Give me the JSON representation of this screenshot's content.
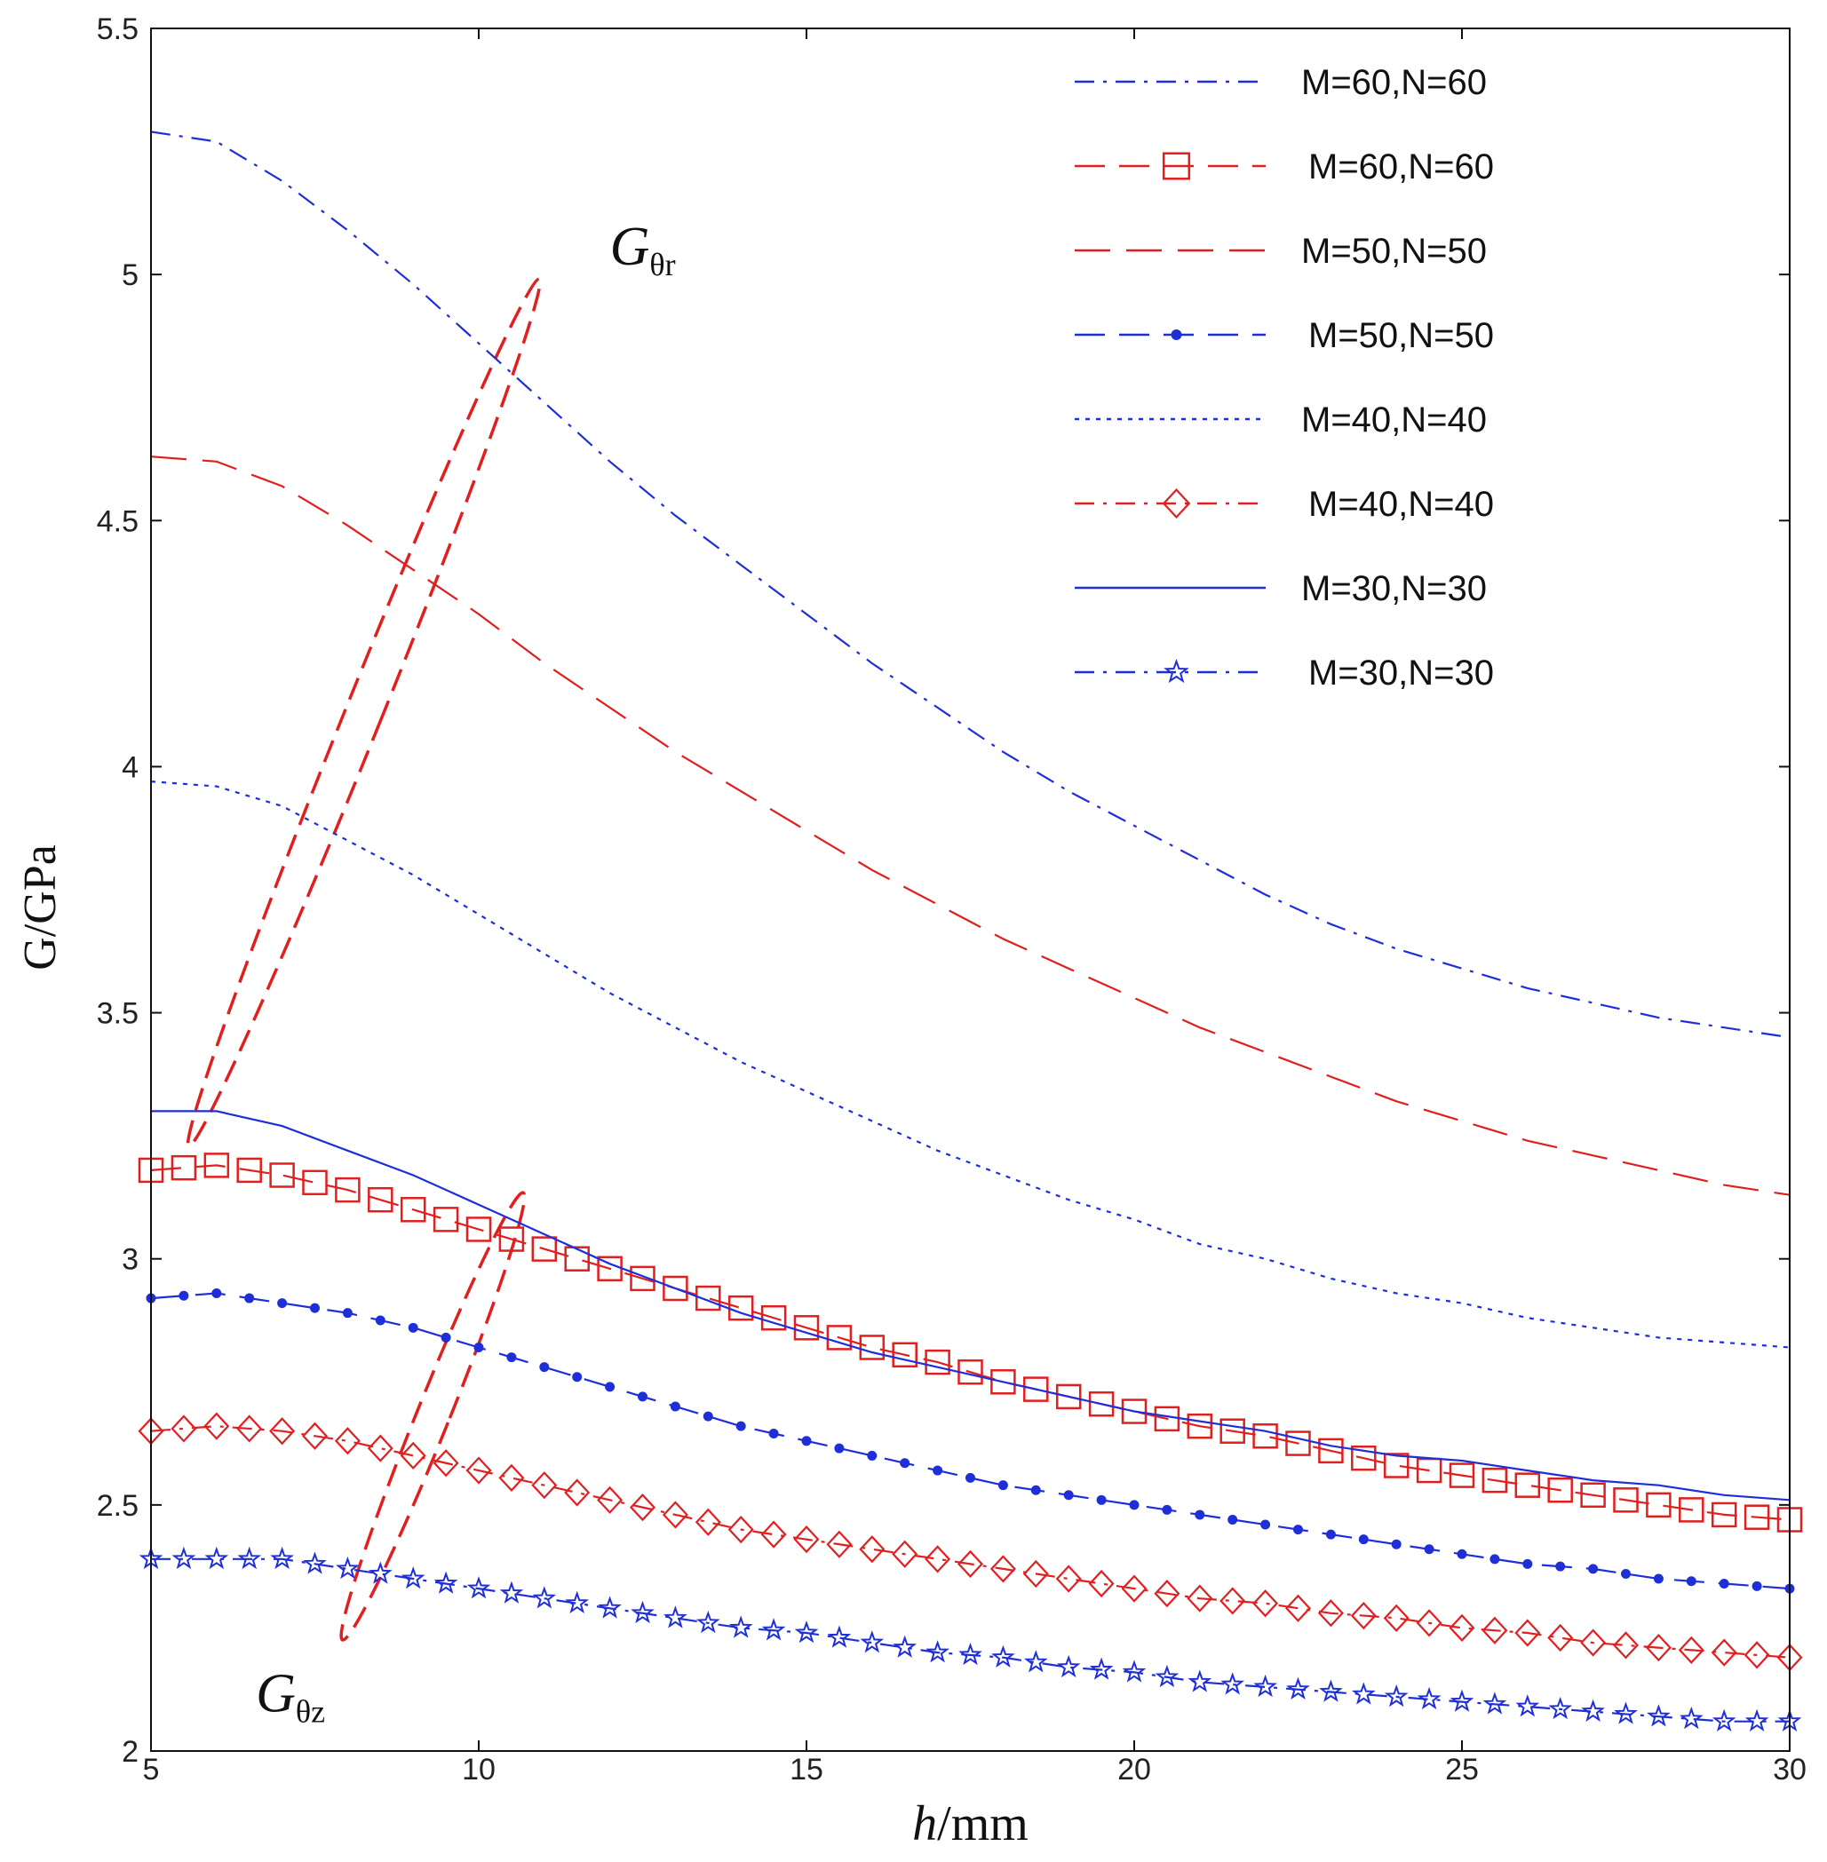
{
  "chart_data": {
    "type": "line",
    "title": "",
    "xlabel_italic": "h",
    "xlabel_rest": "/mm",
    "ylabel": "G/GPa",
    "xlim": [
      5,
      30
    ],
    "ylim": [
      2,
      5.5
    ],
    "xticks": [
      5,
      10,
      15,
      20,
      25,
      30
    ],
    "xtick_labels": [
      "5",
      "10",
      "15",
      "20",
      "25",
      "30"
    ],
    "yticks": [
      2,
      2.5,
      3,
      3.5,
      4,
      4.5,
      5,
      5.5
    ],
    "ytick_labels": [
      "2",
      "2.5",
      "3",
      "3.5",
      "4",
      "4.5",
      "5",
      "5.5"
    ],
    "legend_position": "top-right",
    "annotations": [
      {
        "main": "G",
        "sub": "θr",
        "x": 12.0,
        "y": 5.02
      },
      {
        "main": "G",
        "sub": "θz",
        "x": 6.6,
        "y": 2.08
      }
    ],
    "ellipses": [
      {
        "label": "Gθr group",
        "cx": 8.25,
        "cy": 4.11,
        "rx": 0.28,
        "ry": 0.95,
        "angle_deg": 22
      },
      {
        "label": "Gθz group",
        "cx": 9.3,
        "cy": 2.68,
        "rx": 0.25,
        "ry": 0.49,
        "angle_deg": 22
      }
    ],
    "x": [
      5,
      6,
      7,
      8,
      9,
      10,
      11,
      12,
      13,
      14,
      15,
      16,
      17,
      18,
      19,
      20,
      21,
      22,
      23,
      24,
      25,
      26,
      27,
      28,
      29,
      30
    ],
    "series": [
      {
        "name": "M=60,N=60",
        "group": "Gθr",
        "color": "#1f2fd8",
        "dash": "22 10 4 10",
        "marker": "none",
        "values": [
          5.29,
          5.27,
          5.19,
          5.09,
          4.98,
          4.86,
          4.74,
          4.62,
          4.51,
          4.41,
          4.31,
          4.21,
          4.12,
          4.03,
          3.95,
          3.88,
          3.81,
          3.74,
          3.68,
          3.63,
          3.59,
          3.55,
          3.52,
          3.49,
          3.47,
          3.45
        ]
      },
      {
        "name": "M=60,N=60",
        "group": "Gθz",
        "color": "#e01f1f",
        "dash": "34 16",
        "marker": "square",
        "values": [
          3.18,
          3.19,
          3.17,
          3.14,
          3.1,
          3.06,
          3.02,
          2.98,
          2.94,
          2.9,
          2.86,
          2.82,
          2.79,
          2.75,
          2.72,
          2.69,
          2.66,
          2.64,
          2.61,
          2.58,
          2.56,
          2.54,
          2.52,
          2.5,
          2.48,
          2.47
        ]
      },
      {
        "name": "M=50,N=50",
        "group": "Gθr",
        "color": "#e01f1f",
        "dash": "40 18",
        "marker": "none",
        "values": [
          4.63,
          4.62,
          4.57,
          4.49,
          4.4,
          4.31,
          4.21,
          4.12,
          4.03,
          3.95,
          3.87,
          3.79,
          3.72,
          3.65,
          3.59,
          3.53,
          3.47,
          3.42,
          3.37,
          3.32,
          3.28,
          3.24,
          3.21,
          3.18,
          3.15,
          3.13
        ]
      },
      {
        "name": "M=50,N=50",
        "group": "Gθz",
        "color": "#1f2fd8",
        "dash": "34 16",
        "marker": "dot",
        "values": [
          2.92,
          2.93,
          2.91,
          2.89,
          2.86,
          2.82,
          2.78,
          2.74,
          2.7,
          2.66,
          2.63,
          2.6,
          2.57,
          2.54,
          2.52,
          2.5,
          2.48,
          2.46,
          2.44,
          2.42,
          2.4,
          2.38,
          2.37,
          2.35,
          2.34,
          2.33
        ]
      },
      {
        "name": "M=40,N=40",
        "group": "Gθr",
        "color": "#1f2fd8",
        "dash": "5 7",
        "marker": "none",
        "values": [
          3.97,
          3.96,
          3.92,
          3.85,
          3.78,
          3.7,
          3.62,
          3.54,
          3.47,
          3.4,
          3.34,
          3.28,
          3.22,
          3.17,
          3.12,
          3.08,
          3.03,
          3.0,
          2.96,
          2.93,
          2.91,
          2.88,
          2.86,
          2.84,
          2.83,
          2.82
        ]
      },
      {
        "name": "M=40,N=40",
        "group": "Gθz",
        "color": "#e01f1f",
        "dash": "22 10 4 10",
        "marker": "diamond",
        "values": [
          2.65,
          2.66,
          2.65,
          2.63,
          2.6,
          2.57,
          2.54,
          2.51,
          2.48,
          2.45,
          2.43,
          2.41,
          2.39,
          2.37,
          2.35,
          2.33,
          2.31,
          2.3,
          2.28,
          2.27,
          2.25,
          2.24,
          2.22,
          2.21,
          2.2,
          2.19
        ]
      },
      {
        "name": "M=30,N=30",
        "group": "Gθr",
        "color": "#1f2fd8",
        "dash": "",
        "marker": "none",
        "values": [
          3.3,
          3.3,
          3.27,
          3.22,
          3.17,
          3.11,
          3.05,
          2.99,
          2.94,
          2.89,
          2.85,
          2.81,
          2.78,
          2.75,
          2.72,
          2.69,
          2.67,
          2.65,
          2.62,
          2.6,
          2.59,
          2.57,
          2.55,
          2.54,
          2.52,
          2.51
        ]
      },
      {
        "name": "M=30,N=30",
        "group": "Gθz",
        "color": "#1f2fd8",
        "dash": "22 10 4 10",
        "marker": "star",
        "values": [
          2.39,
          2.39,
          2.39,
          2.37,
          2.35,
          2.33,
          2.31,
          2.29,
          2.27,
          2.25,
          2.24,
          2.22,
          2.2,
          2.19,
          2.17,
          2.16,
          2.14,
          2.13,
          2.12,
          2.11,
          2.1,
          2.09,
          2.08,
          2.07,
          2.06,
          2.06
        ]
      }
    ]
  }
}
